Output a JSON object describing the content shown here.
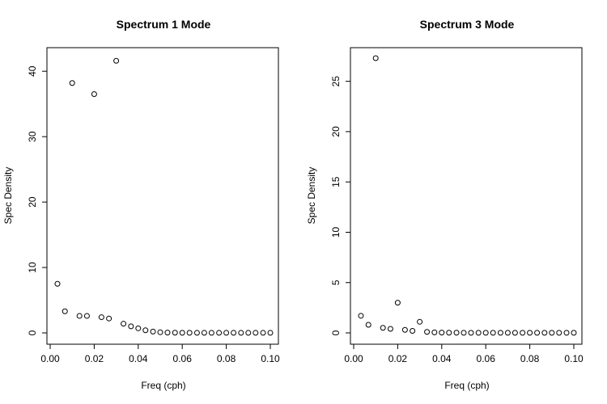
{
  "chart_data": [
    {
      "type": "scatter",
      "title": "Spectrum 1 Mode",
      "xlabel": "Freq (cph)",
      "ylabel": "Spec Density",
      "xlim": [
        0.0,
        0.1
      ],
      "ylim": [
        0,
        42
      ],
      "xticks": [
        "0.00",
        "0.02",
        "0.04",
        "0.06",
        "0.08",
        "0.10"
      ],
      "yticks": [
        "0",
        "10",
        "20",
        "30",
        "40"
      ],
      "grid": false,
      "x": [
        0.0033,
        0.0067,
        0.01,
        0.0133,
        0.0167,
        0.02,
        0.0233,
        0.0267,
        0.03,
        0.0333,
        0.0367,
        0.04,
        0.0433,
        0.0467,
        0.05,
        0.0533,
        0.0567,
        0.06,
        0.0633,
        0.0667,
        0.07,
        0.0733,
        0.0767,
        0.08,
        0.0833,
        0.0867,
        0.09,
        0.0933,
        0.0967,
        0.1
      ],
      "y": [
        7.5,
        3.3,
        38.2,
        2.6,
        2.6,
        36.5,
        2.4,
        2.2,
        41.6,
        1.4,
        1.0,
        0.7,
        0.4,
        0.2,
        0.1,
        0.05,
        0.03,
        0.02,
        0.02,
        0.01,
        0.01,
        0.01,
        0.01,
        0.01,
        0.01,
        0.01,
        0.01,
        0.01,
        0.01,
        0.01
      ]
    },
    {
      "type": "scatter",
      "title": "Spectrum 3 Mode",
      "xlabel": "Freq (cph)",
      "ylabel": "Spec Density",
      "xlim": [
        0.0,
        0.1
      ],
      "ylim": [
        0,
        27.3
      ],
      "xticks": [
        "0.00",
        "0.02",
        "0.04",
        "0.06",
        "0.08",
        "0.10"
      ],
      "yticks": [
        "0",
        "5",
        "10",
        "15",
        "20",
        "25"
      ],
      "grid": false,
      "x": [
        0.0033,
        0.0067,
        0.01,
        0.0133,
        0.0167,
        0.02,
        0.0233,
        0.0267,
        0.03,
        0.0333,
        0.0367,
        0.04,
        0.0433,
        0.0467,
        0.05,
        0.0533,
        0.0567,
        0.06,
        0.0633,
        0.0667,
        0.07,
        0.0733,
        0.0767,
        0.08,
        0.0833,
        0.0867,
        0.09,
        0.0933,
        0.0967,
        0.1
      ],
      "y": [
        1.7,
        0.8,
        27.3,
        0.5,
        0.4,
        3.0,
        0.3,
        0.2,
        1.1,
        0.1,
        0.05,
        0.03,
        0.02,
        0.02,
        0.01,
        0.01,
        0.01,
        0.01,
        0.01,
        0.01,
        0.01,
        0.01,
        0.01,
        0.01,
        0.01,
        0.01,
        0.01,
        0.01,
        0.01,
        0.01
      ]
    }
  ]
}
